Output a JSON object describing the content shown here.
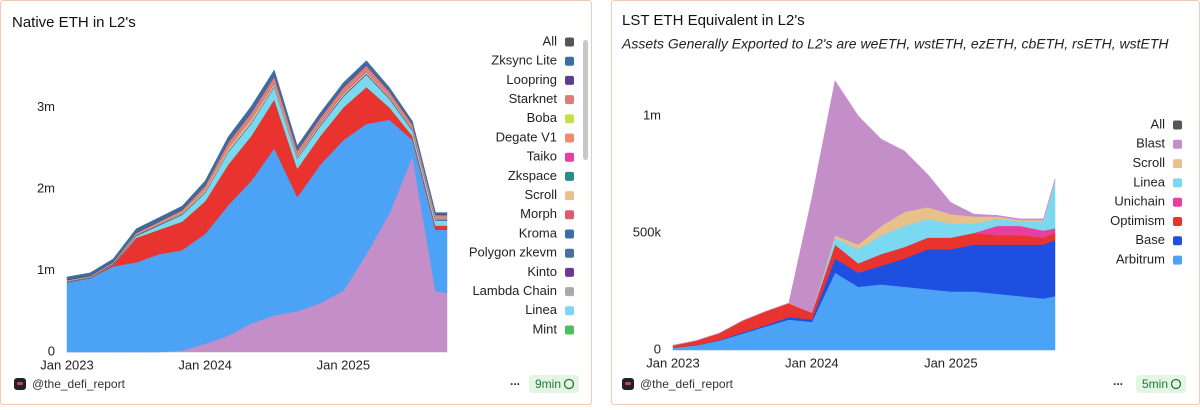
{
  "chart_data": [
    {
      "type": "area",
      "stacked": true,
      "title": "Native ETH in L2's",
      "legend_all": "All",
      "legend_all_color": "#555555",
      "x": [
        "2023-01",
        "2023-03",
        "2023-05",
        "2023-07",
        "2023-09",
        "2023-11",
        "2024-01",
        "2024-03",
        "2024-05",
        "2024-07",
        "2024-09",
        "2024-11",
        "2025-01",
        "2025-03",
        "2025-05",
        "2025-07",
        "2025-09",
        "2025-10"
      ],
      "xlim": [
        "2023-01",
        "2025-10"
      ],
      "xticks": [
        {
          "value": "2023-01",
          "label": "Jan 2023"
        },
        {
          "value": "2024-01",
          "label": "Jan 2024"
        },
        {
          "value": "2025-01",
          "label": "Jan 2025"
        }
      ],
      "ylim": [
        0,
        3700000
      ],
      "yticks": [
        0,
        {
          "value": 1000000,
          "label": "1m"
        },
        {
          "value": 2000000,
          "label": "2m"
        },
        {
          "value": 3000000,
          "label": "3m"
        }
      ],
      "grid": false,
      "legend": "right",
      "series": [
        {
          "name": null,
          "color": "#c48ec9",
          "values": [
            0,
            0,
            0,
            0,
            0,
            20000,
            100000,
            200000,
            350000,
            450000,
            500000,
            600000,
            750000,
            1200000,
            1700000,
            2400000,
            750000,
            720000
          ]
        },
        {
          "name": null,
          "color": "#4ca3f5",
          "values": [
            850000,
            900000,
            1050000,
            1100000,
            1200000,
            1230000,
            1350000,
            1600000,
            1750000,
            2050000,
            1400000,
            1700000,
            1850000,
            1600000,
            1150000,
            200000,
            750000,
            780000
          ]
        },
        {
          "name": null,
          "color": "#e8332e",
          "values": [
            0,
            0,
            20000,
            300000,
            300000,
            350000,
            400000,
            500000,
            550000,
            600000,
            350000,
            350000,
            400000,
            450000,
            150000,
            50000,
            50000,
            50000
          ]
        },
        {
          "name": "Mint",
          "color": "#4cbf5e",
          "values": [
            2000,
            2000,
            2000,
            2000,
            2000,
            2000,
            2000,
            2000,
            2000,
            2000,
            2000,
            2000,
            2000,
            2000,
            2000,
            2000,
            2000,
            2000
          ]
        },
        {
          "name": "Linea",
          "color": "#7ad9f0",
          "values": [
            0,
            0,
            0,
            20000,
            50000,
            80000,
            100000,
            150000,
            150000,
            150000,
            120000,
            120000,
            130000,
            150000,
            100000,
            60000,
            60000,
            60000
          ]
        },
        {
          "name": "Lambda Chain",
          "color": "#aaaaaa",
          "values": [
            2000,
            2000,
            2000,
            2000,
            2000,
            2000,
            2000,
            2000,
            2000,
            2000,
            2000,
            2000,
            2000,
            2000,
            2000,
            2000,
            2000,
            2000
          ]
        },
        {
          "name": "Kinto",
          "color": "#6a3b8e",
          "values": [
            2000,
            2000,
            2000,
            2000,
            2000,
            2000,
            2000,
            2000,
            2000,
            2000,
            2000,
            2000,
            2000,
            2000,
            2000,
            2000,
            2000,
            2000
          ]
        },
        {
          "name": "Polygon zkevm",
          "color": "#4a6e9e",
          "values": [
            5000,
            5000,
            5000,
            5000,
            5000,
            5000,
            5000,
            5000,
            5000,
            5000,
            5000,
            5000,
            5000,
            5000,
            5000,
            5000,
            5000,
            5000
          ]
        },
        {
          "name": "Kroma",
          "color": "#3b6ea8",
          "values": [
            5000,
            5000,
            5000,
            5000,
            5000,
            5000,
            5000,
            5000,
            5000,
            5000,
            5000,
            5000,
            5000,
            5000,
            5000,
            5000,
            5000,
            5000
          ]
        },
        {
          "name": "Morph",
          "color": "#e05a6e",
          "values": [
            0,
            0,
            0,
            0,
            0,
            0,
            0,
            0,
            0,
            0,
            0,
            5000,
            5000,
            5000,
            5000,
            5000,
            5000,
            5000
          ]
        },
        {
          "name": "Scroll",
          "color": "#e8c08a",
          "values": [
            0,
            0,
            0,
            0,
            0,
            10000,
            20000,
            30000,
            40000,
            30000,
            20000,
            20000,
            20000,
            20000,
            15000,
            10000,
            10000,
            10000
          ]
        },
        {
          "name": "Zkspace",
          "color": "#2d8a8a",
          "values": [
            5000,
            5000,
            5000,
            5000,
            5000,
            5000,
            5000,
            5000,
            5000,
            5000,
            5000,
            5000,
            5000,
            5000,
            5000,
            5000,
            5000,
            5000
          ]
        },
        {
          "name": "Taiko",
          "color": "#e83e9e",
          "values": [
            0,
            0,
            0,
            0,
            0,
            0,
            0,
            0,
            5000,
            10000,
            10000,
            10000,
            10000,
            10000,
            5000,
            5000,
            5000,
            5000
          ]
        },
        {
          "name": "Degate V1",
          "color": "#ef8c6e",
          "values": [
            5000,
            5000,
            5000,
            5000,
            5000,
            5000,
            5000,
            5000,
            5000,
            5000,
            5000,
            5000,
            5000,
            5000,
            5000,
            5000,
            5000,
            5000
          ]
        },
        {
          "name": "Boba",
          "color": "#c5e04a",
          "values": [
            5000,
            5000,
            5000,
            5000,
            5000,
            5000,
            5000,
            5000,
            5000,
            5000,
            5000,
            5000,
            5000,
            5000,
            5000,
            5000,
            5000,
            5000
          ]
        },
        {
          "name": "Starknet",
          "color": "#e07a7a",
          "values": [
            0,
            0,
            0,
            10000,
            20000,
            20000,
            40000,
            60000,
            60000,
            60000,
            40000,
            40000,
            50000,
            50000,
            40000,
            30000,
            20000,
            20000
          ]
        },
        {
          "name": "Loopring",
          "color": "#5b3f8e",
          "values": [
            10000,
            10000,
            10000,
            10000,
            10000,
            10000,
            10000,
            10000,
            10000,
            10000,
            10000,
            10000,
            10000,
            10000,
            10000,
            10000,
            10000,
            10000
          ]
        },
        {
          "name": "Zksync Lite",
          "color": "#3b6e9e",
          "values": [
            30000,
            30000,
            30000,
            40000,
            40000,
            40000,
            50000,
            60000,
            70000,
            70000,
            50000,
            50000,
            50000,
            50000,
            40000,
            30000,
            20000,
            20000
          ]
        }
      ],
      "footer": {
        "handle": "@the_defi_report",
        "menu": "...",
        "age": "9min"
      }
    },
    {
      "type": "area",
      "stacked": true,
      "title": "LST ETH Equivalent in L2's",
      "subtitle": "Assets Generally Exported to L2's are weETH, wstETH, ezETH, cbETH, rsETH, wstETH",
      "legend_all": "All",
      "legend_all_color": "#555555",
      "x": [
        "2023-01",
        "2023-03",
        "2023-05",
        "2023-07",
        "2023-09",
        "2023-11",
        "2024-01",
        "2024-03",
        "2024-05",
        "2024-07",
        "2024-09",
        "2024-11",
        "2025-01",
        "2025-03",
        "2025-05",
        "2025-07",
        "2025-09",
        "2025-10"
      ],
      "xlim": [
        "2023-01",
        "2025-10"
      ],
      "xticks": [
        {
          "value": "2023-01",
          "label": "Jan 2023"
        },
        {
          "value": "2024-01",
          "label": "Jan 2024"
        },
        {
          "value": "2025-01",
          "label": "Jan 2025"
        }
      ],
      "ylim": [
        0,
        1200000
      ],
      "yticks": [
        0,
        {
          "value": 500000,
          "label": "500k"
        },
        {
          "value": 1000000,
          "label": "1m"
        }
      ],
      "grid": false,
      "legend": "right",
      "series": [
        {
          "name": "Arbitrum",
          "color": "#4ca3f5",
          "values": [
            10000,
            20000,
            40000,
            70000,
            100000,
            130000,
            120000,
            330000,
            270000,
            280000,
            270000,
            260000,
            250000,
            250000,
            240000,
            230000,
            220000,
            230000
          ]
        },
        {
          "name": "Base",
          "color": "#1f4fe0",
          "values": [
            0,
            0,
            2000,
            5000,
            5000,
            10000,
            10000,
            60000,
            60000,
            80000,
            120000,
            170000,
            180000,
            200000,
            210000,
            220000,
            230000,
            240000
          ]
        },
        {
          "name": "Optimism",
          "color": "#e8332e",
          "values": [
            10000,
            20000,
            30000,
            50000,
            60000,
            60000,
            30000,
            60000,
            40000,
            50000,
            50000,
            50000,
            50000,
            50000,
            40000,
            40000,
            30000,
            30000
          ]
        },
        {
          "name": "Unichain",
          "color": "#e83e9e",
          "values": [
            0,
            0,
            0,
            0,
            0,
            0,
            0,
            0,
            0,
            0,
            0,
            0,
            0,
            0,
            40000,
            40000,
            30000,
            20000
          ]
        },
        {
          "name": "Linea",
          "color": "#7ad9f0",
          "values": [
            0,
            0,
            0,
            0,
            0,
            0,
            0,
            30000,
            60000,
            80000,
            90000,
            80000,
            60000,
            40000,
            30000,
            20000,
            40000,
            200000
          ]
        },
        {
          "name": "Scroll",
          "color": "#e8c08a",
          "values": [
            0,
            0,
            0,
            0,
            0,
            0,
            0,
            10000,
            20000,
            40000,
            60000,
            50000,
            40000,
            30000,
            10000,
            5000,
            5000,
            5000
          ]
        },
        {
          "name": "Blast",
          "color": "#c48ec9",
          "values": [
            0,
            0,
            0,
            0,
            0,
            0,
            490000,
            660000,
            550000,
            370000,
            260000,
            140000,
            50000,
            10000,
            5000,
            5000,
            5000,
            5000
          ]
        }
      ],
      "footer": {
        "handle": "@the_defi_report",
        "menu": "...",
        "age": "5min"
      }
    }
  ]
}
